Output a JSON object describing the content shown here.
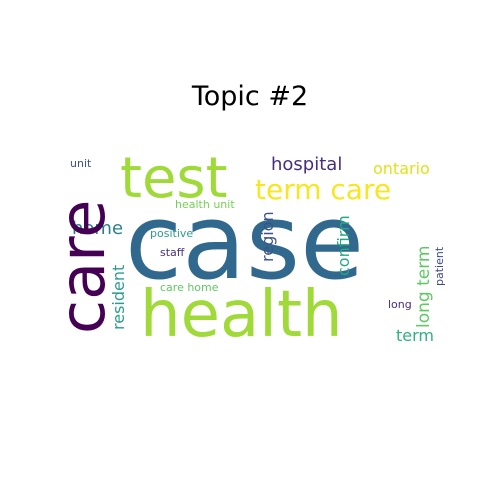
{
  "title": "Topic #2",
  "words": [
    {
      "text": "case",
      "color": "#31688e"
    },
    {
      "text": "health",
      "color": "#a0da39"
    },
    {
      "text": "care",
      "color": "#440154"
    },
    {
      "text": "test",
      "color": "#a0da39"
    },
    {
      "text": "term care",
      "color": "#f7e620"
    },
    {
      "text": "hospital",
      "color": "#472e7c"
    },
    {
      "text": "ontario",
      "color": "#dfe318"
    },
    {
      "text": "home",
      "color": "#26828e"
    },
    {
      "text": "region",
      "color": "#3b528b"
    },
    {
      "text": "confirm",
      "color": "#22a884"
    },
    {
      "text": "resident",
      "color": "#2a9d8f"
    },
    {
      "text": "long term",
      "color": "#5ec962"
    },
    {
      "text": "term",
      "color": "#2db27d"
    },
    {
      "text": "health unit",
      "color": "#75d054"
    },
    {
      "text": "positive",
      "color": "#2a9d8f"
    },
    {
      "text": "staff",
      "color": "#46327e"
    },
    {
      "text": "care home",
      "color": "#5ec962"
    },
    {
      "text": "unit",
      "color": "#3b528b"
    },
    {
      "text": "patient",
      "color": "#3e4a89"
    },
    {
      "text": "long",
      "color": "#472d7b"
    }
  ]
}
